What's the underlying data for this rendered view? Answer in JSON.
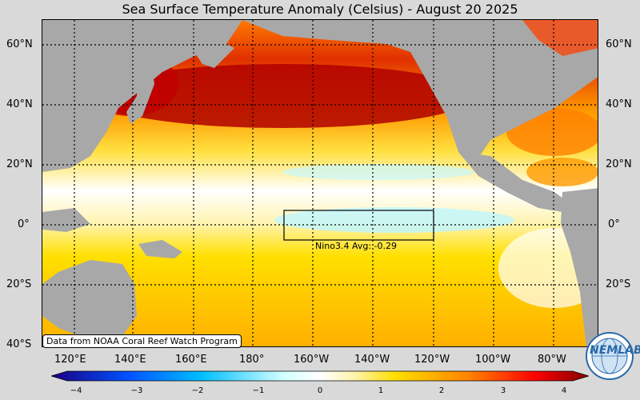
{
  "title": "Sea Surface Temperature Anomaly (Celsius) - August 20 2025",
  "lat_labels": [
    "60°N",
    "40°N",
    "20°N",
    "0°",
    "20°S",
    "40°S"
  ],
  "lon_labels": [
    "120°E",
    "140°E",
    "160°E",
    "180°",
    "160°W",
    "140°W",
    "120°W",
    "100°W",
    "80°W"
  ],
  "nino_box": {
    "label": "Nino3.4 Avg: -0.29",
    "lon_range": [
      "170°W",
      "120°W"
    ],
    "lat_range": [
      "5°S",
      "5°N"
    ]
  },
  "credit": "Data from NOAA Coral Reef Watch Program",
  "colorbar": {
    "min": -4,
    "max": 4,
    "ticks": [
      "−4",
      "−3",
      "−2",
      "−1",
      "0",
      "1",
      "2",
      "3",
      "4"
    ],
    "colors": [
      "#1a0080",
      "#0050ff",
      "#00bfff",
      "#ffffff",
      "#ffe000",
      "#ff8000",
      "#ff0000",
      "#800000"
    ]
  },
  "logo": {
    "text": "NEMLAB",
    "icon": "globe-logo-icon"
  },
  "colors": {
    "land": "#a8a8a8",
    "warm": "#ff6a00",
    "hot": "#c00000",
    "neutral": "#ffffff",
    "cool": "#a0f0ff",
    "background": "#d9d9d9"
  }
}
